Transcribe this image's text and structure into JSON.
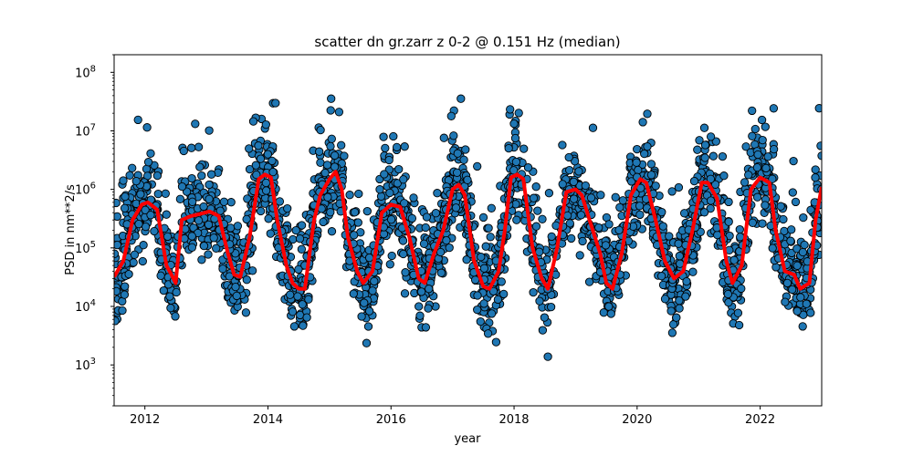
{
  "chart_data": {
    "type": "scatter",
    "title": "scatter dn gr.zarr z 0-2 @ 0.151 Hz (median)",
    "xlabel": "year",
    "ylabel": "PSD in nm**2/s",
    "xlim": [
      2011.5,
      2023.0
    ],
    "ylim": [
      200,
      200000000
    ],
    "yscale": "log",
    "grid": false,
    "x_ticks": [
      2012,
      2014,
      2016,
      2018,
      2020,
      2022
    ],
    "x_tick_labels": [
      "2012",
      "2014",
      "2016",
      "2018",
      "2020",
      "2022"
    ],
    "y_ticks": [
      1000,
      10000,
      100000,
      1000000,
      10000000,
      100000000
    ],
    "y_tick_labels": [
      "10^3",
      "10^4",
      "10^5",
      "10^6",
      "10^7",
      "10^8"
    ],
    "colors": {
      "points": "#1f77b4",
      "point_edge": "#000000",
      "median": "#ff0000"
    },
    "series": [
      {
        "type": "line",
        "color": "#ff0000",
        "x": [
          2011.5,
          2011.65,
          2011.8,
          2011.95,
          2012.05,
          2012.2,
          2012.35,
          2012.45,
          2012.5,
          2012.6,
          2012.75,
          2012.9,
          2013.05,
          2013.2,
          2013.35,
          2013.45,
          2013.55,
          2013.7,
          2013.85,
          2013.95,
          2014.05,
          2014.15,
          2014.3,
          2014.4,
          2014.5,
          2014.6,
          2014.75,
          2014.85,
          2015.0,
          2015.1,
          2015.2,
          2015.3,
          2015.45,
          2015.55,
          2015.7,
          2015.85,
          2016.0,
          2016.15,
          2016.3,
          2016.45,
          2016.55,
          2016.7,
          2016.85,
          2017.0,
          2017.1,
          2017.2,
          2017.35,
          2017.5,
          2017.6,
          2017.75,
          2017.85,
          2017.95,
          2018.05,
          2018.15,
          2018.3,
          2018.45,
          2018.55,
          2018.7,
          2018.85,
          2019.0,
          2019.1,
          2019.25,
          2019.4,
          2019.5,
          2019.6,
          2019.75,
          2019.9,
          2020.05,
          2020.15,
          2020.3,
          2020.45,
          2020.6,
          2020.75,
          2020.9,
          2021.05,
          2021.15,
          2021.3,
          2021.45,
          2021.55,
          2021.7,
          2021.85,
          2022.0,
          2022.15,
          2022.25,
          2022.4,
          2022.55,
          2022.65,
          2022.8,
          2022.9,
          2023.0
        ],
        "y": [
          32000,
          60000,
          300000,
          550000,
          600000,
          450000,
          50000,
          32000,
          25000,
          300000,
          350000,
          380000,
          420000,
          350000,
          80000,
          35000,
          32000,
          150000,
          1500000,
          1800000,
          1600000,
          300000,
          50000,
          25000,
          20000,
          20000,
          300000,
          800000,
          1500000,
          2000000,
          1000000,
          150000,
          40000,
          25000,
          40000,
          400000,
          550000,
          500000,
          150000,
          30000,
          25000,
          80000,
          200000,
          1000000,
          1200000,
          800000,
          60000,
          22000,
          20000,
          40000,
          200000,
          1600000,
          1800000,
          1500000,
          100000,
          30000,
          20000,
          100000,
          900000,
          1000000,
          800000,
          250000,
          80000,
          25000,
          20000,
          80000,
          800000,
          1500000,
          1300000,
          300000,
          60000,
          30000,
          40000,
          200000,
          1300000,
          1300000,
          700000,
          60000,
          25000,
          50000,
          1000000,
          1600000,
          1300000,
          200000,
          40000,
          35000,
          20000,
          25000,
          300000,
          1100000
        ]
      }
    ]
  }
}
